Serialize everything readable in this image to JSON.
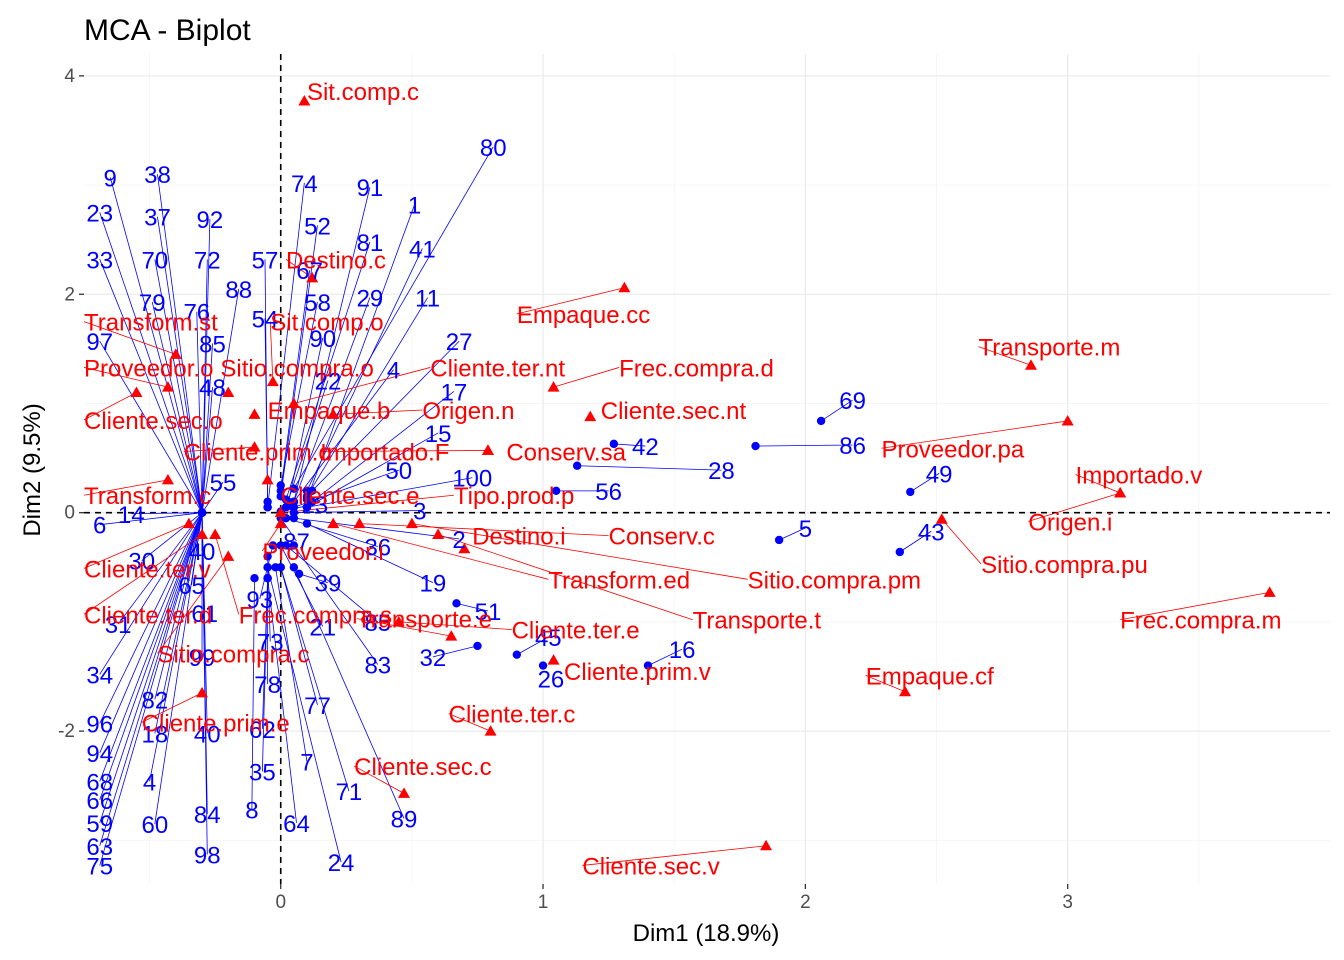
{
  "chart_data": {
    "type": "scatter",
    "title": "MCA - Biplot",
    "xlabel": "Dim1 (18.9%)",
    "ylabel": "Dim2 (9.5%)",
    "xlim": [
      -0.75,
      4.0
    ],
    "ylim": [
      -3.4,
      4.2
    ],
    "x_ticks": [
      0,
      1,
      2,
      3
    ],
    "y_ticks": [
      -2,
      0,
      2,
      4
    ],
    "x_minor_ticks": [
      -0.5,
      0.5,
      1.5,
      2.5,
      3.5
    ],
    "y_minor_ticks": [
      -3,
      -1,
      1,
      3
    ],
    "reference_lines": {
      "x": 0,
      "y": 0
    },
    "colors": {
      "individuals": "#0000ff",
      "variables": "#ff0000"
    },
    "individuals": [
      {
        "label": "80",
        "x": 0.05,
        "y": 0.22,
        "lx": 0.81,
        "ly": 3.35
      },
      {
        "label": "74",
        "x": -0.05,
        "y": 0.05,
        "lx": 0.09,
        "ly": 3.02
      },
      {
        "label": "91",
        "x": 0.05,
        "y": 0.1,
        "lx": 0.34,
        "ly": 2.98
      },
      {
        "label": "1",
        "x": 0.1,
        "y": 0.12,
        "lx": 0.51,
        "ly": 2.82
      },
      {
        "label": "52",
        "x": 0.0,
        "y": 0.15,
        "lx": 0.14,
        "ly": 2.63
      },
      {
        "label": "81",
        "x": 0.02,
        "y": 0.12,
        "lx": 0.34,
        "ly": 2.48
      },
      {
        "label": "41",
        "x": 0.1,
        "y": 0.2,
        "lx": 0.54,
        "ly": 2.42
      },
      {
        "label": "57",
        "x": -0.05,
        "y": 0.05,
        "lx": -0.06,
        "ly": 2.32
      },
      {
        "label": "67",
        "x": 0.0,
        "y": 0.2,
        "lx": 0.11,
        "ly": 2.22
      },
      {
        "label": "58",
        "x": 0.0,
        "y": 0.25,
        "lx": 0.14,
        "ly": 1.93
      },
      {
        "label": "29",
        "x": 0.05,
        "y": 0.1,
        "lx": 0.34,
        "ly": 1.97
      },
      {
        "label": "11",
        "x": 0.1,
        "y": 0.15,
        "lx": 0.56,
        "ly": 1.97
      },
      {
        "label": "54",
        "x": -0.05,
        "y": 0.1,
        "lx": -0.06,
        "ly": 1.78
      },
      {
        "label": "90",
        "x": 0.03,
        "y": 0.1,
        "lx": 0.16,
        "ly": 1.6
      },
      {
        "label": "27",
        "x": 0.12,
        "y": 0.2,
        "lx": 0.68,
        "ly": 1.57
      },
      {
        "label": "4",
        "x": 0.05,
        "y": 0.1,
        "lx": 0.43,
        "ly": 1.31
      },
      {
        "label": "22",
        "x": 0.02,
        "y": 0.05,
        "lx": 0.18,
        "ly": 1.21
      },
      {
        "label": "17",
        "x": 0.12,
        "y": 0.1,
        "lx": 0.66,
        "ly": 1.11
      },
      {
        "label": "15",
        "x": 0.1,
        "y": 0.05,
        "lx": 0.6,
        "ly": 0.73
      },
      {
        "label": "50",
        "x": 0.05,
        "y": 0.05,
        "lx": 0.45,
        "ly": 0.39
      },
      {
        "label": "100",
        "x": 0.1,
        "y": 0.05,
        "lx": 0.73,
        "ly": 0.32
      },
      {
        "label": "3",
        "x": 0.05,
        "y": 0.0,
        "lx": 0.53,
        "ly": 0.02
      },
      {
        "label": "23",
        "x": 0.0,
        "y": 0.01,
        "lx": 0.13,
        "ly": 0.08
      },
      {
        "label": "2",
        "x": 0.05,
        "y": -0.05,
        "lx": 0.68,
        "ly": -0.24
      },
      {
        "label": "87",
        "x": 0.0,
        "y": -0.05,
        "lx": 0.06,
        "ly": -0.26
      },
      {
        "label": "36",
        "x": 0.02,
        "y": -0.05,
        "lx": 0.37,
        "ly": -0.31
      },
      {
        "label": "39",
        "x": 0.07,
        "y": -0.56,
        "lx": 0.18,
        "ly": -0.64
      },
      {
        "label": "19",
        "x": 0.1,
        "y": -0.1,
        "lx": 0.58,
        "ly": -0.64
      },
      {
        "label": "51",
        "x": 0.67,
        "y": -0.83,
        "lx": 0.79,
        "ly": -0.9
      },
      {
        "label": "93",
        "x": -0.03,
        "y": -0.3,
        "lx": -0.08,
        "ly": -0.79
      },
      {
        "label": "21",
        "x": 0.0,
        "y": -0.3,
        "lx": 0.16,
        "ly": -1.04
      },
      {
        "label": "85",
        "x": 0.02,
        "y": -0.3,
        "lx": 0.37,
        "ly": -1.0
      },
      {
        "label": "45",
        "x": 0.9,
        "y": -1.3,
        "lx": 1.02,
        "ly": -1.14
      },
      {
        "label": "73",
        "x": -0.05,
        "y": -0.4,
        "lx": -0.04,
        "ly": -1.18
      },
      {
        "label": "32",
        "x": 0.75,
        "y": -1.22,
        "lx": 0.58,
        "ly": -1.32
      },
      {
        "label": "16",
        "x": 1.4,
        "y": -1.4,
        "lx": 1.53,
        "ly": -1.25
      },
      {
        "label": "83",
        "x": 0.05,
        "y": -0.3,
        "lx": 0.37,
        "ly": -1.39
      },
      {
        "label": "26",
        "x": 1.0,
        "y": -1.4,
        "lx": 1.03,
        "ly": -1.52
      },
      {
        "label": "78",
        "x": -0.05,
        "y": -0.5,
        "lx": -0.05,
        "ly": -1.57
      },
      {
        "label": "77",
        "x": 0.0,
        "y": -0.5,
        "lx": 0.14,
        "ly": -1.76
      },
      {
        "label": "62",
        "x": -0.05,
        "y": -0.6,
        "lx": -0.07,
        "ly": -1.98
      },
      {
        "label": "7",
        "x": -0.02,
        "y": -0.5,
        "lx": 0.1,
        "ly": -2.28
      },
      {
        "label": "35",
        "x": -0.05,
        "y": -0.6,
        "lx": -0.07,
        "ly": -2.37
      },
      {
        "label": "71",
        "x": 0.0,
        "y": -0.5,
        "lx": 0.26,
        "ly": -2.55
      },
      {
        "label": "89",
        "x": 0.05,
        "y": -0.5,
        "lx": 0.47,
        "ly": -2.8
      },
      {
        "label": "8",
        "x": -0.1,
        "y": -0.6,
        "lx": -0.11,
        "ly": -2.72
      },
      {
        "label": "64",
        "x": -0.05,
        "y": -0.6,
        "lx": 0.06,
        "ly": -2.84
      },
      {
        "label": "24",
        "x": -0.05,
        "y": -0.5,
        "lx": 0.23,
        "ly": -3.2
      },
      {
        "label": "69",
        "x": 2.06,
        "y": 0.84,
        "lx": 2.18,
        "ly": 1.03
      },
      {
        "label": "86",
        "x": 1.81,
        "y": 0.61,
        "lx": 2.18,
        "ly": 0.62
      },
      {
        "label": "42",
        "x": 1.27,
        "y": 0.63,
        "lx": 1.39,
        "ly": 0.61
      },
      {
        "label": "28",
        "x": 1.13,
        "y": 0.43,
        "lx": 1.68,
        "ly": 0.39
      },
      {
        "label": "56",
        "x": 1.05,
        "y": 0.2,
        "lx": 1.25,
        "ly": 0.2
      },
      {
        "label": "49",
        "x": 2.4,
        "y": 0.19,
        "lx": 2.51,
        "ly": 0.36
      },
      {
        "label": "5",
        "x": 1.9,
        "y": -0.25,
        "lx": 2.0,
        "ly": -0.14
      },
      {
        "label": "43",
        "x": 2.36,
        "y": -0.36,
        "lx": 2.48,
        "ly": -0.17
      },
      {
        "label": "9",
        "x": -0.3,
        "y": 0.0,
        "lx": -0.65,
        "ly": 3.07
      },
      {
        "label": "38",
        "x": -0.3,
        "y": 0.0,
        "lx": -0.47,
        "ly": 3.1
      },
      {
        "label": "23",
        "x": -0.3,
        "y": 0.0,
        "lx": -0.69,
        "ly": 2.75
      },
      {
        "label": "37",
        "x": -0.3,
        "y": 0.0,
        "lx": -0.47,
        "ly": 2.71
      },
      {
        "label": "92",
        "x": -0.3,
        "y": 0.0,
        "lx": -0.27,
        "ly": 2.69
      },
      {
        "label": "33",
        "x": -0.3,
        "y": 0.0,
        "lx": -0.69,
        "ly": 2.32
      },
      {
        "label": "70",
        "x": -0.3,
        "y": 0.0,
        "lx": -0.48,
        "ly": 2.32
      },
      {
        "label": "72",
        "x": -0.3,
        "y": 0.0,
        "lx": -0.28,
        "ly": 2.32
      },
      {
        "label": "88",
        "x": -0.3,
        "y": 0.0,
        "lx": -0.16,
        "ly": 2.05
      },
      {
        "label": "79",
        "x": -0.3,
        "y": 0.0,
        "lx": -0.49,
        "ly": 1.93
      },
      {
        "label": "76",
        "x": -0.3,
        "y": 0.0,
        "lx": -0.32,
        "ly": 1.84
      },
      {
        "label": "97",
        "x": -0.3,
        "y": 0.0,
        "lx": -0.69,
        "ly": 1.57
      },
      {
        "label": "85",
        "x": -0.3,
        "y": 0.0,
        "lx": -0.26,
        "ly": 1.55
      },
      {
        "label": "48",
        "x": -0.3,
        "y": 0.0,
        "lx": -0.26,
        "ly": 1.15
      },
      {
        "label": "14",
        "x": -0.3,
        "y": 0.0,
        "lx": -0.57,
        "ly": -0.01
      },
      {
        "label": "6",
        "x": -0.3,
        "y": 0.0,
        "lx": -0.69,
        "ly": -0.11
      },
      {
        "label": "55",
        "x": -0.3,
        "y": 0.0,
        "lx": -0.22,
        "ly": 0.28
      },
      {
        "label": "30",
        "x": -0.3,
        "y": 0.0,
        "lx": -0.53,
        "ly": -0.44
      },
      {
        "label": "40",
        "x": -0.3,
        "y": 0.0,
        "lx": -0.3,
        "ly": -0.35
      },
      {
        "label": "65",
        "x": -0.3,
        "y": 0.0,
        "lx": -0.34,
        "ly": -0.66
      },
      {
        "label": "61",
        "x": -0.3,
        "y": 0.0,
        "lx": -0.29,
        "ly": -0.92
      },
      {
        "label": "31",
        "x": -0.3,
        "y": 0.0,
        "lx": -0.62,
        "ly": -1.02
      },
      {
        "label": "99",
        "x": -0.3,
        "y": 0.0,
        "lx": -0.3,
        "ly": -1.32
      },
      {
        "label": "34",
        "x": -0.3,
        "y": 0.0,
        "lx": -0.69,
        "ly": -1.48
      },
      {
        "label": "82",
        "x": -0.3,
        "y": 0.0,
        "lx": -0.48,
        "ly": -1.71
      },
      {
        "label": "96",
        "x": -0.3,
        "y": 0.0,
        "lx": -0.69,
        "ly": -1.93
      },
      {
        "label": "18",
        "x": -0.3,
        "y": 0.0,
        "lx": -0.48,
        "ly": -2.02
      },
      {
        "label": "40",
        "x": -0.3,
        "y": 0.0,
        "lx": -0.28,
        "ly": -2.02
      },
      {
        "label": "94",
        "x": -0.3,
        "y": 0.0,
        "lx": -0.69,
        "ly": -2.2
      },
      {
        "label": "68",
        "x": -0.3,
        "y": 0.0,
        "lx": -0.69,
        "ly": -2.46
      },
      {
        "label": "4",
        "x": -0.3,
        "y": 0.0,
        "lx": -0.5,
        "ly": -2.46
      },
      {
        "label": "66",
        "x": -0.3,
        "y": 0.0,
        "lx": -0.69,
        "ly": -2.63
      },
      {
        "label": "59",
        "x": -0.3,
        "y": 0.0,
        "lx": -0.69,
        "ly": -2.84
      },
      {
        "label": "84",
        "x": -0.3,
        "y": 0.0,
        "lx": -0.28,
        "ly": -2.76
      },
      {
        "label": "60",
        "x": -0.3,
        "y": 0.0,
        "lx": -0.48,
        "ly": -2.85
      },
      {
        "label": "63",
        "x": -0.3,
        "y": 0.0,
        "lx": -0.69,
        "ly": -3.05
      },
      {
        "label": "98",
        "x": -0.3,
        "y": 0.0,
        "lx": -0.28,
        "ly": -3.13
      },
      {
        "label": "75",
        "x": -0.3,
        "y": 0.0,
        "lx": -0.69,
        "ly": -3.23
      }
    ],
    "variables": [
      {
        "label": "Sit.comp.c",
        "x": 0.09,
        "y": 3.77,
        "lx": 0.1,
        "ly": 3.86
      },
      {
        "label": "Destino.c",
        "x": 0.12,
        "y": 2.15,
        "lx": 0.02,
        "ly": 2.32
      },
      {
        "label": "Empaque.cc",
        "x": 1.31,
        "y": 2.06,
        "lx": 0.9,
        "ly": 1.82
      },
      {
        "label": "Transform.st",
        "x": -0.4,
        "y": 1.45,
        "lx": -0.75,
        "ly": 1.75
      },
      {
        "label": "Sit.comp.o",
        "x": -0.03,
        "y": 1.2,
        "lx": -0.04,
        "ly": 1.75
      },
      {
        "label": "Sitio.compra.o",
        "x": -0.2,
        "y": 1.1,
        "lx": -0.23,
        "ly": 1.33
      },
      {
        "label": "Proveedor.o",
        "x": -0.43,
        "y": 1.15,
        "lx": -0.75,
        "ly": 1.33
      },
      {
        "label": "Cliente.ter.nt",
        "x": 0.05,
        "y": 1.0,
        "lx": 0.57,
        "ly": 1.33
      },
      {
        "label": "Frec.compra.d",
        "x": 1.04,
        "y": 1.15,
        "lx": 1.29,
        "ly": 1.33
      },
      {
        "label": "Transporte.m",
        "x": 2.86,
        "y": 1.35,
        "lx": 2.66,
        "ly": 1.52
      },
      {
        "label": "Empaque.b",
        "x": -0.1,
        "y": 0.9,
        "lx": -0.05,
        "ly": 0.94
      },
      {
        "label": "Origen.n",
        "x": 0.2,
        "y": 0.9,
        "lx": 0.54,
        "ly": 0.94
      },
      {
        "label": "Cliente.sec.nt",
        "x": 1.18,
        "y": 0.88,
        "lx": 1.22,
        "ly": 0.94
      },
      {
        "label": "Cliente.sec.o",
        "x": -0.55,
        "y": 1.1,
        "lx": -0.75,
        "ly": 0.85
      },
      {
        "label": "Cliente.prim.o",
        "x": -0.1,
        "y": 0.6,
        "lx": -0.37,
        "ly": 0.56
      },
      {
        "label": "Importado.F",
        "x": 0.79,
        "y": 0.57,
        "lx": 0.15,
        "ly": 0.56
      },
      {
        "label": "Conserv.sa",
        "x": 0.79,
        "y": 0.57,
        "lx": 0.86,
        "ly": 0.56
      },
      {
        "label": "Proveedor.pa",
        "x": 3.0,
        "y": 0.84,
        "lx": 2.29,
        "ly": 0.59
      },
      {
        "label": "Importado.v",
        "x": 3.2,
        "y": 0.18,
        "lx": 3.03,
        "ly": 0.35
      },
      {
        "label": "Transform.c",
        "x": -0.43,
        "y": 0.3,
        "lx": -0.75,
        "ly": 0.16
      },
      {
        "label": "Cliente.sec.e",
        "x": -0.05,
        "y": 0.3,
        "lx": 0.0,
        "ly": 0.16
      },
      {
        "label": "Tipo.prod.p",
        "x": 0.0,
        "y": 0.0,
        "lx": 0.66,
        "ly": 0.16
      },
      {
        "label": "Origen.i",
        "x": 3.2,
        "y": 0.18,
        "lx": 2.85,
        "ly": -0.08
      },
      {
        "label": "Sitio.compra.pu",
        "x": 2.52,
        "y": -0.06,
        "lx": 2.67,
        "ly": -0.47
      },
      {
        "label": "Destino.i",
        "x": 0.7,
        "y": -0.33,
        "lx": 0.73,
        "ly": -0.21
      },
      {
        "label": "Conserv.c",
        "x": 0.3,
        "y": -0.1,
        "lx": 1.25,
        "ly": -0.21
      },
      {
        "label": "Cliente.ter.v",
        "x": -0.35,
        "y": -0.1,
        "lx": -0.75,
        "ly": -0.51
      },
      {
        "label": "Proveedor.i",
        "x": 0.0,
        "y": -0.1,
        "lx": -0.07,
        "ly": -0.35
      },
      {
        "label": "Transform.ed",
        "x": 0.2,
        "y": -0.1,
        "lx": 1.02,
        "ly": -0.61
      },
      {
        "label": "Sitio.compra.pm",
        "x": 0.5,
        "y": -0.1,
        "lx": 1.78,
        "ly": -0.61
      },
      {
        "label": "Frec.compra.m",
        "x": 3.77,
        "y": -0.73,
        "lx": 3.2,
        "ly": -0.98
      },
      {
        "label": "Cliente.ter.d",
        "x": -0.3,
        "y": -0.2,
        "lx": -0.75,
        "ly": -0.93
      },
      {
        "label": "Frec.compra.s",
        "x": -0.25,
        "y": -0.2,
        "lx": -0.16,
        "ly": -0.93
      },
      {
        "label": "Transporte.e",
        "x": 0.65,
        "y": -1.13,
        "lx": 0.29,
        "ly": -0.97
      },
      {
        "label": "Transporte.t",
        "x": 0.6,
        "y": -0.2,
        "lx": 1.57,
        "ly": -0.98
      },
      {
        "label": "Cliente.ter.e",
        "x": 0.45,
        "y": -1.0,
        "lx": 0.88,
        "ly": -1.07
      },
      {
        "label": "Sitio.compra.c",
        "x": -0.2,
        "y": -0.4,
        "lx": -0.47,
        "ly": -1.29
      },
      {
        "label": "Cliente.prim.v",
        "x": 1.04,
        "y": -1.35,
        "lx": 1.08,
        "ly": -1.45
      },
      {
        "label": "Empaque.cf",
        "x": 2.38,
        "y": -1.64,
        "lx": 2.23,
        "ly": -1.49
      },
      {
        "label": "Cliente.prim.e",
        "x": -0.3,
        "y": -1.65,
        "lx": -0.53,
        "ly": -1.92
      },
      {
        "label": "Cliente.ter.c",
        "x": 0.8,
        "y": -2.0,
        "lx": 0.64,
        "ly": -1.84
      },
      {
        "label": "Cliente.sec.c",
        "x": 0.47,
        "y": -2.57,
        "lx": 0.28,
        "ly": -2.32
      },
      {
        "label": "Cliente.sec.v",
        "x": 1.85,
        "y": -3.05,
        "lx": 1.15,
        "ly": -3.23
      }
    ]
  }
}
